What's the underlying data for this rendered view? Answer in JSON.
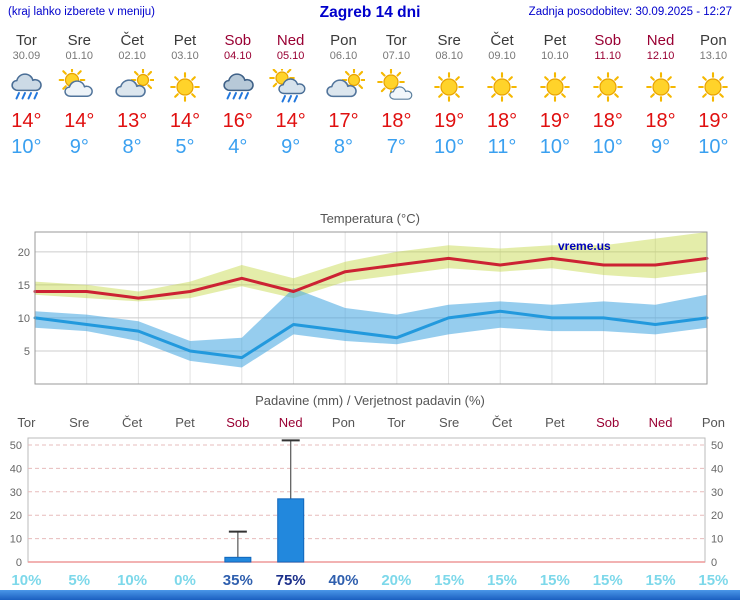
{
  "header": {
    "menu_hint": "(kraj lahko izberete v meniju)",
    "title": "Zagreb 14 dni",
    "last_update": "Zadnja posodobitev: 30.09.2025 - 12:27"
  },
  "colors": {
    "accent_blue": "#0000cc",
    "tmax_red": "#e01010",
    "tmin_blue": "#3aa0f0",
    "weekend_red": "#990033",
    "footer_blue": "#1b5fc0"
  },
  "days": [
    {
      "name": "Tor",
      "date": "30.09",
      "weekend": false,
      "icon": "showers-icon",
      "tmax": "14°",
      "tmin": "10°"
    },
    {
      "name": "Sre",
      "date": "01.10",
      "weekend": false,
      "icon": "partly-cloudy-icon",
      "tmax": "14°",
      "tmin": "9°"
    },
    {
      "name": "Čet",
      "date": "02.10",
      "weekend": false,
      "icon": "mostly-cloudy-icon",
      "tmax": "13°",
      "tmin": "8°"
    },
    {
      "name": "Pet",
      "date": "03.10",
      "weekend": false,
      "icon": "sunny-icon",
      "tmax": "14°",
      "tmin": "5°"
    },
    {
      "name": "Sob",
      "date": "04.10",
      "weekend": true,
      "icon": "rain-icon",
      "tmax": "16°",
      "tmin": "4°"
    },
    {
      "name": "Ned",
      "date": "05.10",
      "weekend": true,
      "icon": "sun-showers-icon",
      "tmax": "14°",
      "tmin": "9°"
    },
    {
      "name": "Pon",
      "date": "06.10",
      "weekend": false,
      "icon": "mostly-cloudy-icon",
      "tmax": "17°",
      "tmin": "8°"
    },
    {
      "name": "Tor",
      "date": "07.10",
      "weekend": false,
      "icon": "sun-cloud-icon",
      "tmax": "18°",
      "tmin": "7°"
    },
    {
      "name": "Sre",
      "date": "08.10",
      "weekend": false,
      "icon": "sunny-icon",
      "tmax": "19°",
      "tmin": "10°"
    },
    {
      "name": "Čet",
      "date": "09.10",
      "weekend": false,
      "icon": "sunny-icon",
      "tmax": "18°",
      "tmin": "11°"
    },
    {
      "name": "Pet",
      "date": "10.10",
      "weekend": false,
      "icon": "sunny-icon",
      "tmax": "19°",
      "tmin": "10°"
    },
    {
      "name": "Sob",
      "date": "11.10",
      "weekend": true,
      "icon": "sunny-icon",
      "tmax": "18°",
      "tmin": "10°"
    },
    {
      "name": "Ned",
      "date": "12.10",
      "weekend": true,
      "icon": "sunny-icon",
      "tmax": "18°",
      "tmin": "9°"
    },
    {
      "name": "Pon",
      "date": "13.10",
      "weekend": false,
      "icon": "sunny-icon",
      "tmax": "19°",
      "tmin": "10°"
    }
  ],
  "chart_data": [
    {
      "type": "line",
      "title": "Temperatura (°C)",
      "watermark": "vreme.us",
      "x_categories": [
        "Tor 30.09",
        "Sre 01.10",
        "Čet 02.10",
        "Pet 03.10",
        "Sob 04.10",
        "Ned 05.10",
        "Pon 06.10",
        "Tor 07.10",
        "Sre 08.10",
        "Čet 09.10",
        "Pet 10.10",
        "Sob 11.10",
        "Ned 12.10",
        "Pon 13.10"
      ],
      "yticks": [
        5,
        10,
        15,
        20
      ],
      "ylim": [
        0,
        23
      ],
      "grid": true,
      "series": [
        {
          "name": "max-temperature",
          "color": "#cc2233",
          "values": [
            14,
            14,
            13,
            14,
            16,
            14,
            17,
            18,
            19,
            18,
            19,
            18,
            18,
            19
          ]
        },
        {
          "name": "min-temperature",
          "color": "#2299dd",
          "values": [
            10,
            9,
            8,
            5,
            4,
            9,
            8,
            7,
            10,
            11,
            10,
            10,
            9,
            10
          ]
        }
      ],
      "bands": [
        {
          "name": "max-temperature-range",
          "color": "rgba(196,214,66,0.45)",
          "upper": [
            15.5,
            15,
            14,
            15.5,
            18,
            16,
            18.5,
            20,
            21,
            20.5,
            21,
            21,
            22,
            23
          ],
          "lower": [
            13.5,
            13,
            12.5,
            13,
            14.8,
            13,
            15.5,
            16.5,
            17.5,
            17,
            17.5,
            16.5,
            16,
            17
          ]
        },
        {
          "name": "min-temperature-range",
          "color": "rgba(64,164,224,0.55)",
          "upper": [
            11,
            10.5,
            9.5,
            6.5,
            7,
            14.5,
            11.5,
            10.5,
            12,
            12.5,
            12,
            12.5,
            12,
            13.5
          ],
          "lower": [
            8.5,
            8,
            6.5,
            3.5,
            2.5,
            7.5,
            6.5,
            6,
            7.5,
            8.5,
            8,
            8,
            7.5,
            8.5
          ]
        }
      ]
    },
    {
      "type": "bar",
      "title": "Padavine (mm) / Verjetnost padavin (%)",
      "categories": [
        "Tor",
        "Sre",
        "Čet",
        "Pet",
        "Sob",
        "Ned",
        "Pon",
        "Tor",
        "Sre",
        "Čet",
        "Pet",
        "Sob",
        "Ned",
        "Pon"
      ],
      "weekend": [
        false,
        false,
        false,
        false,
        true,
        true,
        false,
        false,
        false,
        false,
        false,
        true,
        true,
        false
      ],
      "yticks": [
        0,
        10,
        20,
        30,
        40,
        50
      ],
      "ylim": [
        0,
        53
      ],
      "values": [
        0,
        0,
        0,
        0,
        2,
        27,
        0,
        0,
        0,
        0,
        0,
        0,
        0,
        0
      ],
      "whisker_max": [
        0,
        0,
        0,
        0,
        13,
        52,
        0,
        0,
        0,
        0,
        0,
        0,
        0,
        0
      ],
      "bar_color": "#2288dd",
      "bar_border": "#1166bb",
      "probabilities": [
        {
          "label": "10%",
          "level": "low"
        },
        {
          "label": "5%",
          "level": "low"
        },
        {
          "label": "10%",
          "level": "low"
        },
        {
          "label": "0%",
          "level": "low"
        },
        {
          "label": "35%",
          "level": "medium"
        },
        {
          "label": "75%",
          "level": "high"
        },
        {
          "label": "40%",
          "level": "medium"
        },
        {
          "label": "20%",
          "level": "low"
        },
        {
          "label": "15%",
          "level": "low"
        },
        {
          "label": "15%",
          "level": "low"
        },
        {
          "label": "15%",
          "level": "low"
        },
        {
          "label": "15%",
          "level": "low"
        },
        {
          "label": "15%",
          "level": "low"
        },
        {
          "label": "15%",
          "level": "low"
        }
      ]
    }
  ]
}
